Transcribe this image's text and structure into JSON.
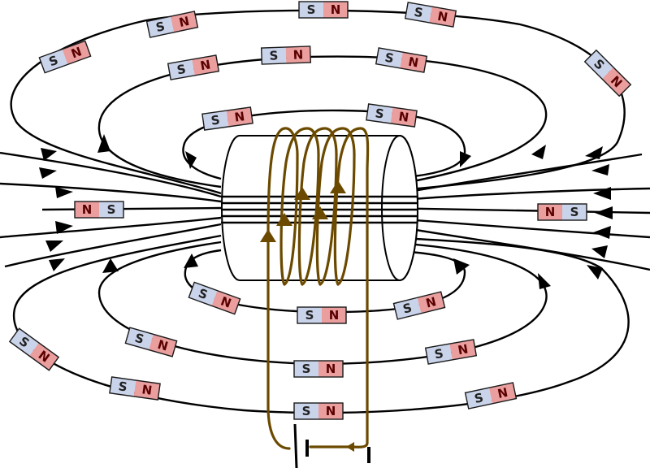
{
  "colors": {
    "field_line": "#000000",
    "coil_wire": "#6b4a00",
    "magnet_south": "#c9d3ea",
    "magnet_north": "#ea9e9e"
  },
  "labels": {
    "south": "S",
    "north": "N"
  }
}
